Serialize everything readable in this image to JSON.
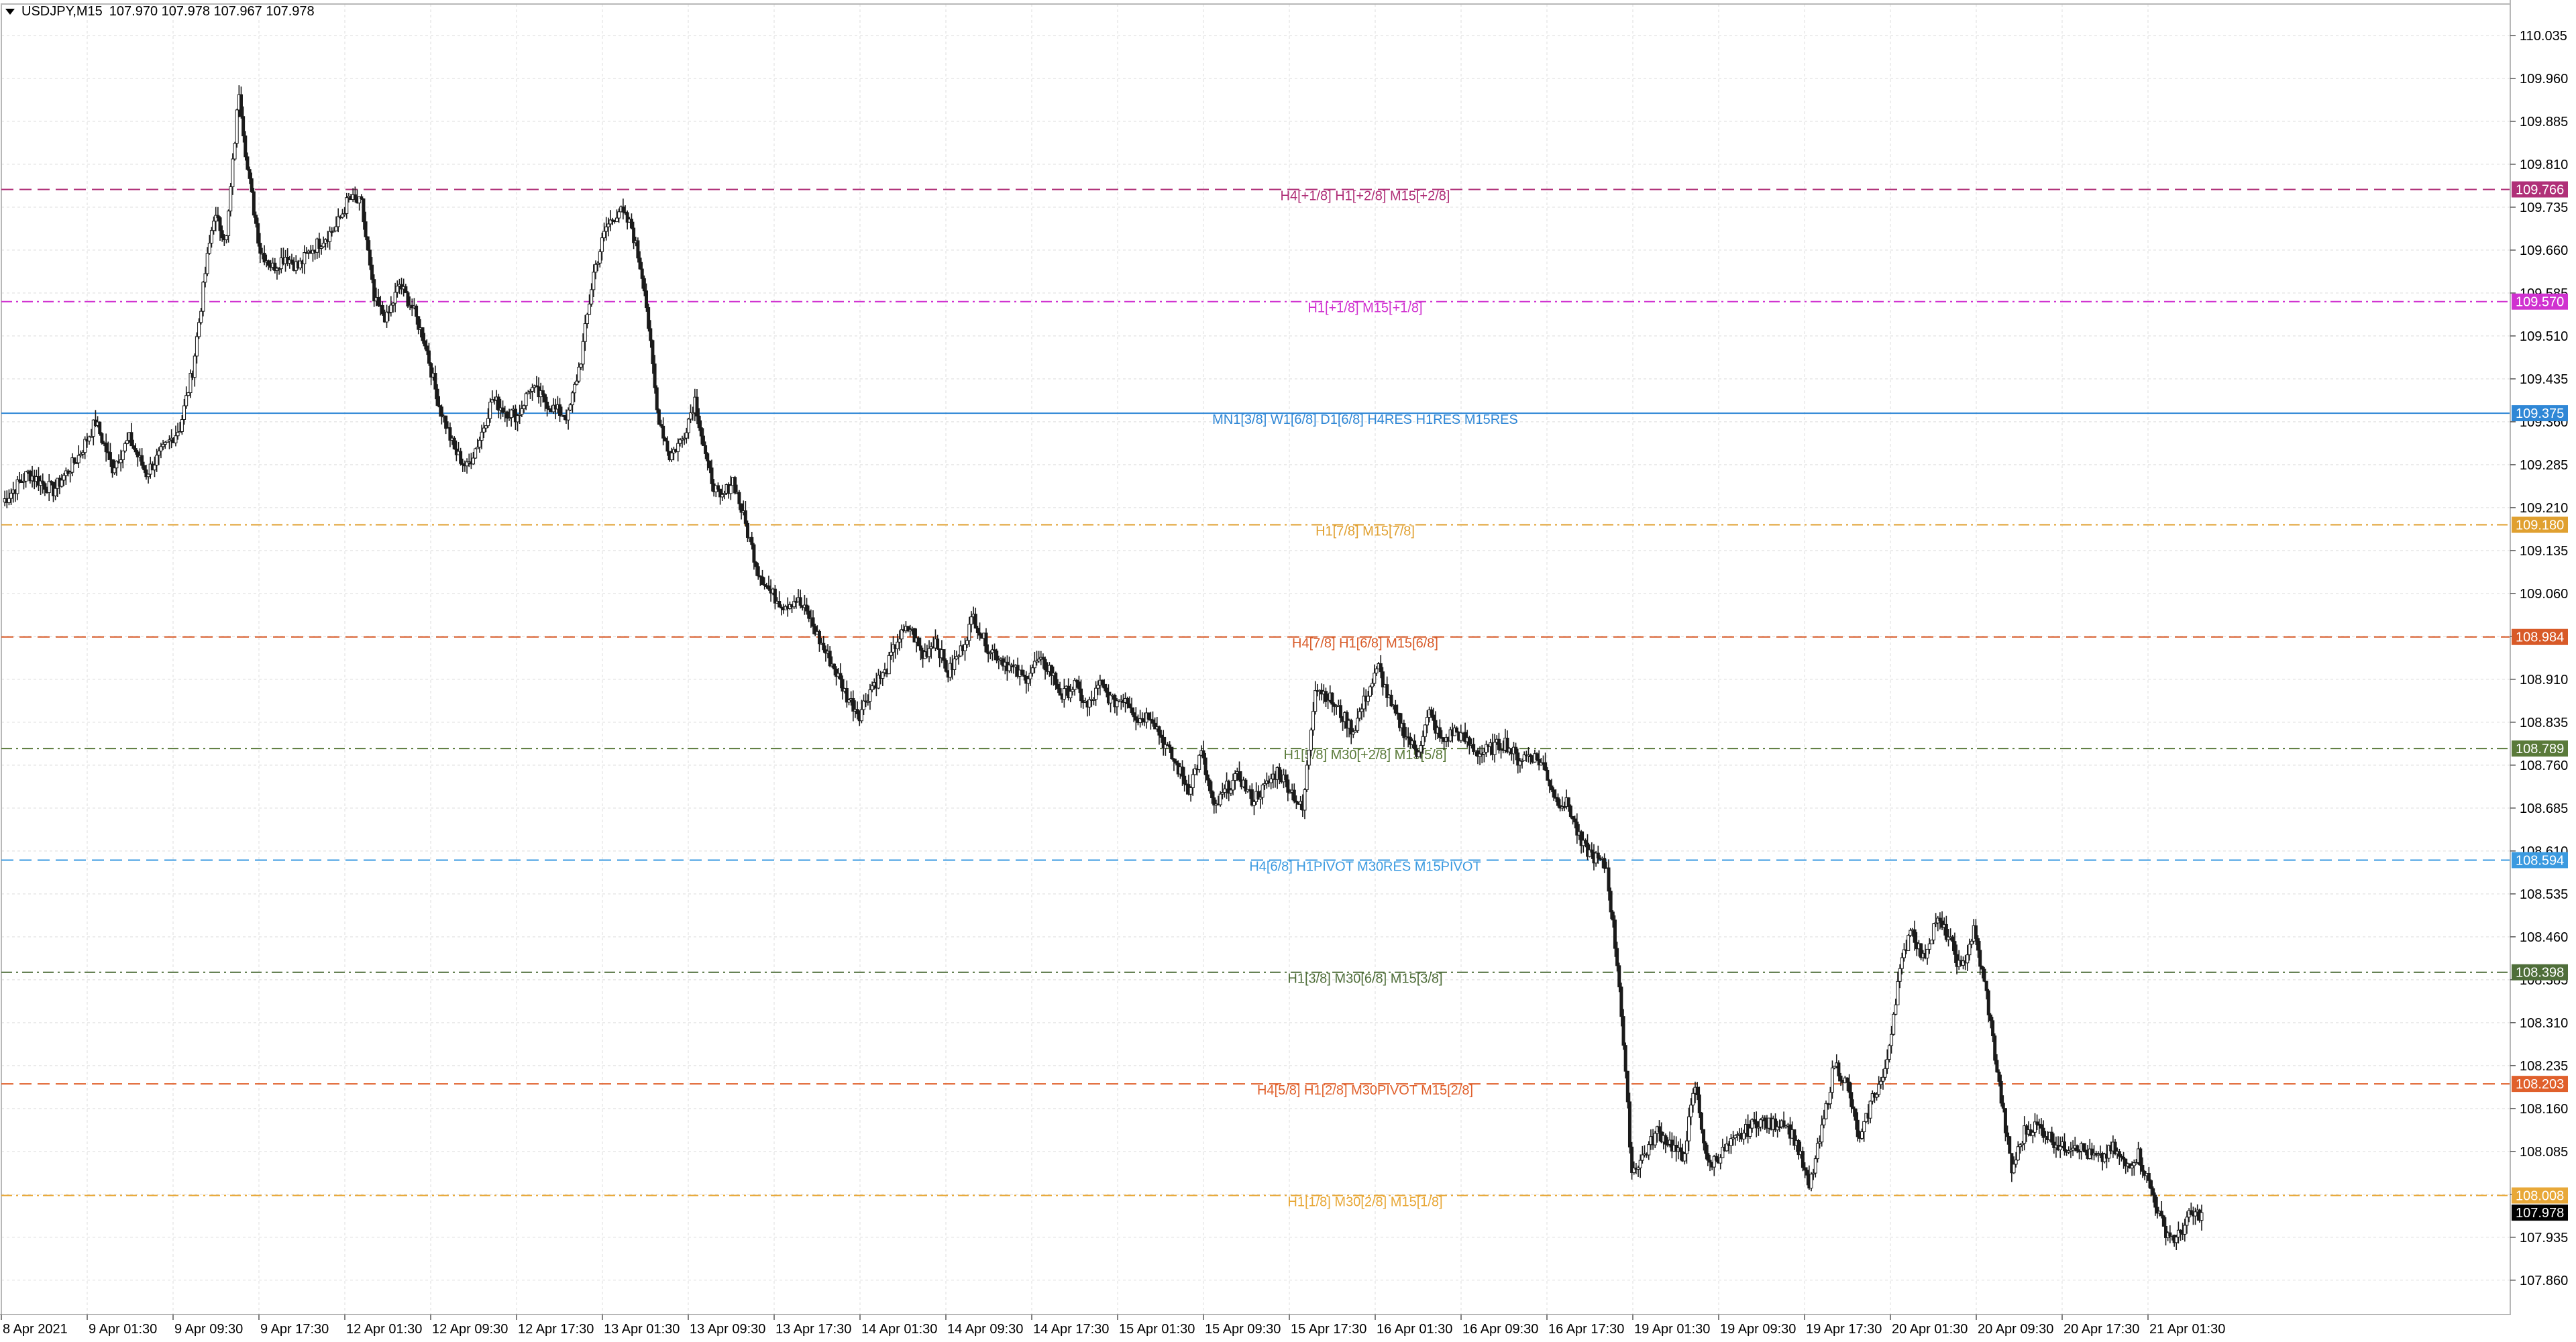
{
  "header": {
    "symbol": "USDJPY,M15",
    "ohlc": "107.970 107.978 107.967 107.978"
  },
  "chart_data": {
    "type": "candlestick",
    "symbol": "USDJPY",
    "timeframe": "M15",
    "ylim": [
      107.8,
      110.09
    ],
    "grid": true,
    "y_ticks": [
      "110.035",
      "109.960",
      "109.885",
      "109.810",
      "109.735",
      "109.660",
      "109.585",
      "109.510",
      "109.435",
      "109.360",
      "109.285",
      "109.210",
      "109.135",
      "109.060",
      "108.985",
      "108.910",
      "108.835",
      "108.760",
      "108.685",
      "108.610",
      "108.535",
      "108.460",
      "108.385",
      "108.310",
      "108.235",
      "108.160",
      "108.085",
      "108.010",
      "107.935",
      "107.860"
    ],
    "x_ticks": [
      "8 Apr 2021",
      "9 Apr 01:30",
      "9 Apr 09:30",
      "9 Apr 17:30",
      "12 Apr 01:30",
      "12 Apr 09:30",
      "12 Apr 17:30",
      "13 Apr 01:30",
      "13 Apr 09:30",
      "13 Apr 17:30",
      "14 Apr 01:30",
      "14 Apr 09:30",
      "14 Apr 17:30",
      "15 Apr 01:30",
      "15 Apr 09:30",
      "15 Apr 17:30",
      "16 Apr 01:30",
      "16 Apr 09:30",
      "16 Apr 17:30",
      "19 Apr 01:30",
      "19 Apr 09:30",
      "19 Apr 17:30",
      "20 Apr 01:30",
      "20 Apr 09:30",
      "20 Apr 17:30",
      "21 Apr 01:30"
    ],
    "close_path": [
      [
        0,
        109.22
      ],
      [
        6,
        109.27
      ],
      [
        12,
        109.24
      ],
      [
        18,
        109.3
      ],
      [
        22,
        109.36
      ],
      [
        26,
        109.28
      ],
      [
        30,
        109.33
      ],
      [
        34,
        109.27
      ],
      [
        38,
        109.31
      ],
      [
        42,
        109.35
      ],
      [
        45,
        109.45
      ],
      [
        48,
        109.62
      ],
      [
        50,
        109.72
      ],
      [
        53,
        109.68
      ],
      [
        56,
        109.94
      ],
      [
        58,
        109.8
      ],
      [
        61,
        109.66
      ],
      [
        64,
        109.63
      ],
      [
        67,
        109.65
      ],
      [
        70,
        109.63
      ],
      [
        73,
        109.66
      ],
      [
        76,
        109.68
      ],
      [
        79,
        109.7
      ],
      [
        82,
        109.75
      ],
      [
        85,
        109.74
      ],
      [
        88,
        109.57
      ],
      [
        91,
        109.54
      ],
      [
        94,
        109.6
      ],
      [
        97,
        109.56
      ],
      [
        100,
        109.5
      ],
      [
        103,
        109.4
      ],
      [
        107,
        109.31
      ],
      [
        110,
        109.28
      ],
      [
        113,
        109.33
      ],
      [
        116,
        109.4
      ],
      [
        119,
        109.38
      ],
      [
        122,
        109.37
      ],
      [
        125,
        109.42
      ],
      [
        128,
        109.4
      ],
      [
        131,
        109.38
      ],
      [
        134,
        109.37
      ],
      [
        137,
        109.47
      ],
      [
        140,
        109.62
      ],
      [
        143,
        109.7
      ],
      [
        146,
        109.73
      ],
      [
        149,
        109.7
      ],
      [
        152,
        109.6
      ],
      [
        155,
        109.38
      ],
      [
        158,
        109.3
      ],
      [
        161,
        109.33
      ],
      [
        164,
        109.4
      ],
      [
        167,
        109.28
      ],
      [
        170,
        109.22
      ],
      [
        173,
        109.26
      ],
      [
        176,
        109.18
      ],
      [
        179,
        109.1
      ],
      [
        182,
        109.06
      ],
      [
        185,
        109.04
      ],
      [
        188,
        109.05
      ],
      [
        191,
        109.02
      ],
      [
        194,
        108.97
      ],
      [
        197,
        108.93
      ],
      [
        200,
        108.88
      ],
      [
        203,
        108.85
      ],
      [
        206,
        108.9
      ],
      [
        209,
        108.92
      ],
      [
        212,
        108.98
      ],
      [
        215,
        109.0
      ],
      [
        218,
        108.95
      ],
      [
        221,
        108.98
      ],
      [
        224,
        108.92
      ],
      [
        227,
        108.96
      ],
      [
        230,
        109.02
      ],
      [
        233,
        108.97
      ],
      [
        236,
        108.95
      ],
      [
        239,
        108.93
      ],
      [
        242,
        108.91
      ],
      [
        245,
        108.94
      ],
      [
        248,
        108.93
      ],
      [
        251,
        108.88
      ],
      [
        254,
        108.9
      ],
      [
        257,
        108.86
      ],
      [
        260,
        108.9
      ],
      [
        263,
        108.87
      ],
      [
        266,
        108.88
      ],
      [
        269,
        108.84
      ],
      [
        272,
        108.85
      ],
      [
        275,
        108.8
      ],
      [
        278,
        108.76
      ],
      [
        281,
        108.72
      ],
      [
        284,
        108.78
      ],
      [
        287,
        108.68
      ],
      [
        290,
        108.72
      ],
      [
        293,
        108.74
      ],
      [
        296,
        108.7
      ],
      [
        299,
        108.72
      ],
      [
        302,
        108.75
      ],
      [
        305,
        108.72
      ],
      [
        308,
        108.68
      ],
      [
        311,
        108.9
      ],
      [
        314,
        108.88
      ],
      [
        317,
        108.85
      ],
      [
        320,
        108.82
      ],
      [
        323,
        108.88
      ],
      [
        326,
        108.93
      ],
      [
        329,
        108.86
      ],
      [
        332,
        108.82
      ],
      [
        335,
        108.78
      ],
      [
        338,
        108.85
      ],
      [
        341,
        108.8
      ],
      [
        344,
        108.82
      ],
      [
        347,
        108.8
      ],
      [
        350,
        108.78
      ],
      [
        353,
        108.79
      ],
      [
        356,
        108.8
      ],
      [
        359,
        108.77
      ],
      [
        362,
        108.78
      ],
      [
        365,
        108.76
      ],
      [
        368,
        108.7
      ],
      [
        371,
        108.69
      ],
      [
        374,
        108.62
      ],
      [
        377,
        108.6
      ],
      [
        380,
        108.58
      ],
      [
        383,
        108.38
      ],
      [
        386,
        108.05
      ],
      [
        389,
        108.08
      ],
      [
        392,
        108.12
      ],
      [
        395,
        108.1
      ],
      [
        398,
        108.07
      ],
      [
        401,
        108.2
      ],
      [
        404,
        108.06
      ],
      [
        407,
        108.08
      ],
      [
        410,
        108.1
      ],
      [
        413,
        108.12
      ],
      [
        416,
        108.14
      ],
      [
        419,
        108.13
      ],
      [
        422,
        108.14
      ],
      [
        425,
        108.1
      ],
      [
        428,
        108.02
      ],
      [
        431,
        108.12
      ],
      [
        434,
        108.24
      ],
      [
        437,
        108.2
      ],
      [
        440,
        108.1
      ],
      [
        443,
        108.18
      ],
      [
        446,
        108.22
      ],
      [
        449,
        108.38
      ],
      [
        452,
        108.48
      ],
      [
        455,
        108.42
      ],
      [
        458,
        108.49
      ],
      [
        461,
        108.46
      ],
      [
        464,
        108.4
      ],
      [
        467,
        108.47
      ],
      [
        470,
        108.36
      ],
      [
        473,
        108.2
      ],
      [
        476,
        108.05
      ],
      [
        479,
        108.12
      ],
      [
        482,
        108.13
      ],
      [
        485,
        108.11
      ],
      [
        488,
        108.09
      ],
      [
        491,
        108.1
      ],
      [
        494,
        108.08
      ],
      [
        497,
        108.07
      ],
      [
        500,
        108.09
      ],
      [
        503,
        108.06
      ],
      [
        506,
        108.08
      ],
      [
        509,
        108.02
      ],
      [
        512,
        107.95
      ],
      [
        515,
        107.93
      ],
      [
        518,
        107.97
      ],
      [
        521,
        107.978
      ]
    ],
    "levels": [
      {
        "value": 109.766,
        "price_label": "109.766",
        "label": "H4[+1/8] H1[+2/8] M15[+2/8]",
        "color": "#b03078",
        "style": "dash"
      },
      {
        "value": 109.57,
        "price_label": "109.570",
        "label": "H1[+1/8] M15[+1/8]",
        "color": "#d032d0",
        "style": "dashdot"
      },
      {
        "value": 109.375,
        "price_label": "109.375",
        "label": "MN1[3/8] W1[6/8] D1[6/8] H4RES H1RES M15RES",
        "color": "#2f87d6",
        "style": "solid"
      },
      {
        "value": 109.18,
        "price_label": "109.180",
        "label": "H1[7/8] M15[7/8]",
        "color": "#e0a030",
        "style": "dashdot"
      },
      {
        "value": 108.984,
        "price_label": "108.984",
        "label": "H4[7/8] H1[6/8] M15[6/8]",
        "color": "#d85a28",
        "style": "dash"
      },
      {
        "value": 108.789,
        "price_label": "108.789",
        "label": "H1[5/8] M30[+2/8] M15[5/8]",
        "color": "#5a7a3a",
        "style": "dashdot"
      },
      {
        "value": 108.594,
        "price_label": "108.594",
        "label": "H4[6/8] H1PIVOT M30RES M15PIVOT",
        "color": "#3b9ae0",
        "style": "dash"
      },
      {
        "value": 108.398,
        "price_label": "108.398",
        "label": "H1[3/8] M30[6/8] M15[3/8]",
        "color": "#4f6e3a",
        "style": "dashdot"
      },
      {
        "value": 108.203,
        "price_label": "108.203",
        "label": "H4[5/8] H1[2/8] M30PIVOT M15[2/8]",
        "color": "#e0602c",
        "style": "dash"
      },
      {
        "value": 108.008,
        "price_label": "108.008",
        "label": "H1[1/8] M30[2/8] M15[1/8]",
        "color": "#e8a838",
        "style": "dashdot"
      }
    ],
    "current_price": {
      "value": 107.978,
      "label": "107.978",
      "color": "#000000"
    }
  },
  "colors": {
    "background": "#ffffff",
    "grid": "#e8e8e8",
    "candle": "#1a1a1a",
    "axis": "#b8b8b8"
  }
}
